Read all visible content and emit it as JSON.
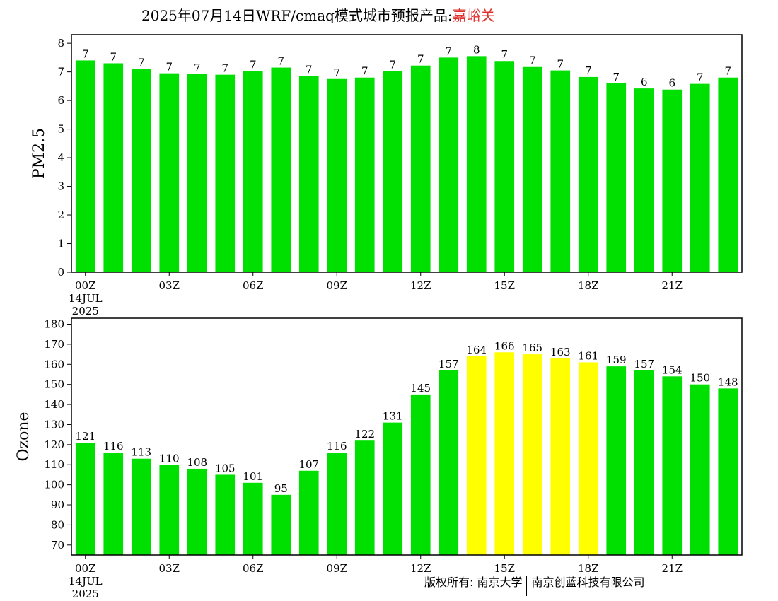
{
  "header": {
    "title_prefix": "2025年07月14日WRF/cmaq模式城市预报产品:",
    "title_city": "嘉峪关"
  },
  "footer": {
    "left": "版权所有: 南京大学",
    "right": "南京创蓝科技有限公司"
  },
  "colors": {
    "green": "#00e000",
    "yellow": "#ffff00",
    "axis": "#000000",
    "city_title": "#e0302c"
  },
  "chart_data": [
    {
      "type": "bar",
      "ylabel": "PM2.5",
      "ylim": [
        0,
        8.3
      ],
      "yticks": [
        0,
        1,
        2,
        3,
        4,
        5,
        6,
        7,
        8
      ],
      "xtick_labels": [
        "00Z",
        "03Z",
        "06Z",
        "09Z",
        "12Z",
        "15Z",
        "18Z",
        "21Z"
      ],
      "xtick_hours": [
        0,
        3,
        6,
        9,
        12,
        15,
        18,
        21
      ],
      "date_label": [
        "14JUL",
        "2025"
      ],
      "hours": [
        0,
        1,
        2,
        3,
        4,
        5,
        6,
        7,
        8,
        9,
        10,
        11,
        12,
        13,
        14,
        15,
        16,
        17,
        18,
        19,
        20,
        21,
        22,
        23
      ],
      "values": [
        7.4,
        7.3,
        7.1,
        6.95,
        6.92,
        6.9,
        7.03,
        7.15,
        6.85,
        6.75,
        6.8,
        7.03,
        7.22,
        7.5,
        7.55,
        7.38,
        7.17,
        7.05,
        6.82,
        6.6,
        6.42,
        6.38,
        6.58,
        6.8
      ],
      "labels": [
        "7",
        "7",
        "7",
        "7",
        "7",
        "7",
        "7",
        "7",
        "7",
        "7",
        "7",
        "7",
        "7",
        "7",
        "8",
        "7",
        "7",
        "7",
        "7",
        "7",
        "6",
        "6",
        "7",
        "7"
      ],
      "bar_colors": [
        "green",
        "green",
        "green",
        "green",
        "green",
        "green",
        "green",
        "green",
        "green",
        "green",
        "green",
        "green",
        "green",
        "green",
        "green",
        "green",
        "green",
        "green",
        "green",
        "green",
        "green",
        "green",
        "green",
        "green"
      ]
    },
    {
      "type": "bar",
      "ylabel": "Ozone",
      "ylim": [
        65,
        183
      ],
      "yticks": [
        70,
        80,
        90,
        100,
        110,
        120,
        130,
        140,
        150,
        160,
        170,
        180
      ],
      "xtick_labels": [
        "00Z",
        "03Z",
        "06Z",
        "09Z",
        "12Z",
        "15Z",
        "18Z",
        "21Z"
      ],
      "xtick_hours": [
        0,
        3,
        6,
        9,
        12,
        15,
        18,
        21
      ],
      "date_label": [
        "14JUL",
        "2025"
      ],
      "hours": [
        0,
        1,
        2,
        3,
        4,
        5,
        6,
        7,
        8,
        9,
        10,
        11,
        12,
        13,
        14,
        15,
        16,
        17,
        18,
        19,
        20,
        21,
        22,
        23
      ],
      "values": [
        121,
        116,
        113,
        110,
        108,
        105,
        101,
        95,
        107,
        116,
        122,
        131,
        145,
        157,
        164,
        166,
        165,
        163,
        161,
        159,
        157,
        154,
        150,
        148
      ],
      "labels": [
        "121",
        "116",
        "113",
        "110",
        "108",
        "105",
        "101",
        "95",
        "107",
        "116",
        "122",
        "131",
        "145",
        "157",
        "164",
        "166",
        "165",
        "163",
        "161",
        "159",
        "157",
        "154",
        "150",
        "148"
      ],
      "bar_colors": [
        "green",
        "green",
        "green",
        "green",
        "green",
        "green",
        "green",
        "green",
        "green",
        "green",
        "green",
        "green",
        "green",
        "green",
        "yellow",
        "yellow",
        "yellow",
        "yellow",
        "yellow",
        "green",
        "green",
        "green",
        "green",
        "green"
      ]
    }
  ]
}
